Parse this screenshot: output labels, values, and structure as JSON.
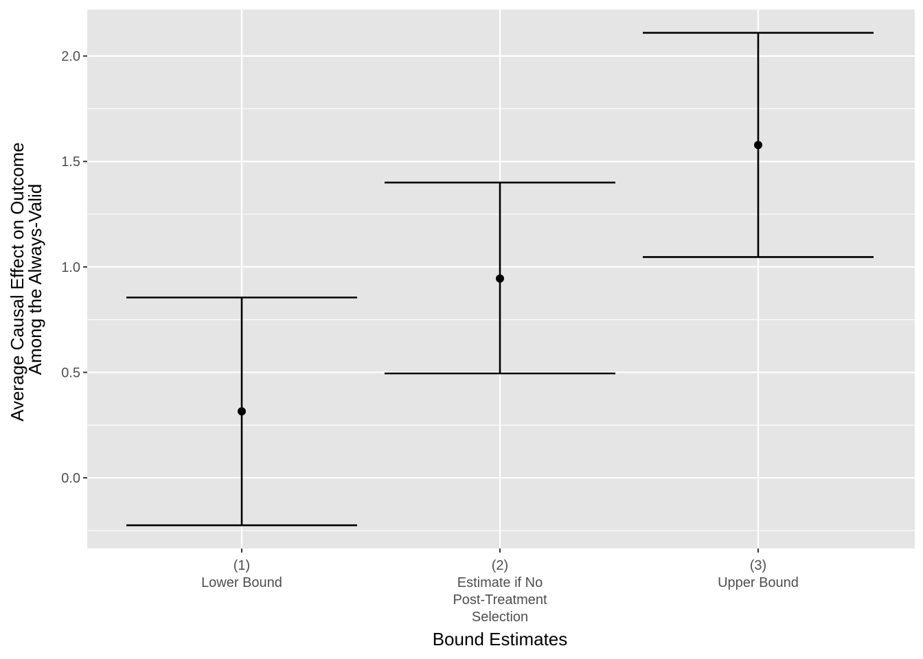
{
  "chart_data": {
    "type": "errorbar",
    "xlabel": "Bound Estimates",
    "ylabel_lines": [
      "Average Causal Effect on Outcome",
      "Among the Always-Valid"
    ],
    "ylim": [
      -0.335,
      2.22
    ],
    "yticks": [
      0.0,
      0.5,
      1.0,
      1.5,
      2.0
    ],
    "ytick_labels": [
      "0.0",
      "0.5",
      "1.0",
      "1.5",
      "2.0"
    ],
    "categories": [
      {
        "lines": [
          "(1)",
          "Lower Bound"
        ]
      },
      {
        "lines": [
          "(2)",
          "Estimate if No",
          "Post-Treatment",
          "Selection"
        ]
      },
      {
        "lines": [
          "(3)",
          "Upper Bound"
        ]
      }
    ],
    "points": [
      {
        "estimate": 0.315,
        "lower": -0.225,
        "upper": 0.855
      },
      {
        "estimate": 0.945,
        "lower": 0.495,
        "upper": 1.4
      },
      {
        "estimate": 1.578,
        "lower": 1.047,
        "upper": 2.11
      }
    ],
    "grid": true,
    "colors": {
      "panel": "#e5e5e5",
      "grid": "#ffffff",
      "marks": "#000000"
    }
  }
}
